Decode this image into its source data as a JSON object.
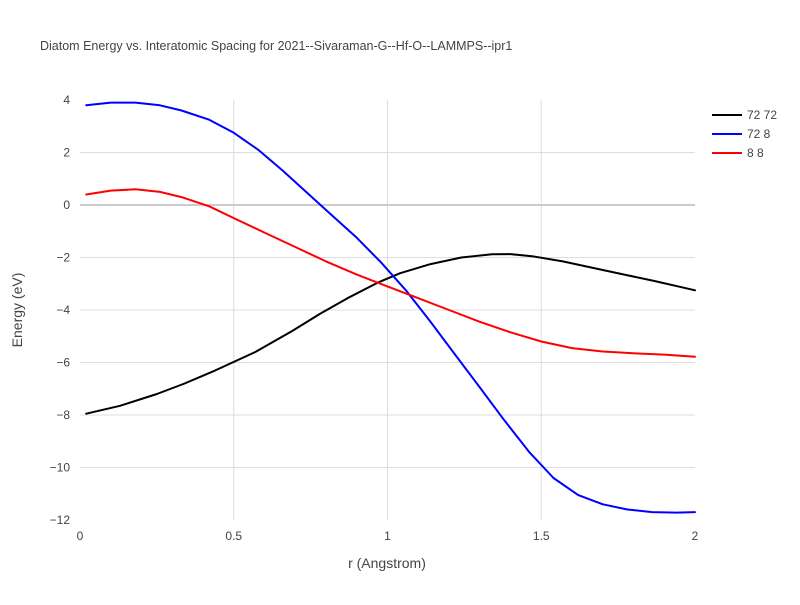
{
  "chart_data": {
    "type": "line",
    "title": "Diatom Energy vs. Interatomic Spacing for 2021--Sivaraman-G--Hf-O--LAMMPS--ipr1",
    "xlabel": "r (Angstrom)",
    "ylabel": "Energy (eV)",
    "xlim": [
      0,
      2
    ],
    "ylim": [
      -12,
      4
    ],
    "x_ticks": [
      0,
      0.5,
      1,
      1.5,
      2
    ],
    "x_tick_labels": [
      "0",
      "0.5",
      "1",
      "1.5",
      "2"
    ],
    "y_ticks": [
      -12,
      -10,
      -8,
      -6,
      -4,
      -2,
      0,
      2,
      4
    ],
    "y_tick_labels": [
      "−12",
      "−10",
      "−8",
      "−6",
      "−4",
      "−2",
      "0",
      "2",
      "4"
    ],
    "grid": true,
    "legend_position": "top-right",
    "series": [
      {
        "name": "72 72",
        "color": "#000000",
        "x": [
          0.02,
          0.13,
          0.25,
          0.34,
          0.44,
          0.57,
          0.69,
          0.78,
          0.87,
          0.97,
          1.04,
          1.14,
          1.24,
          1.34,
          1.4,
          1.47,
          1.57,
          1.67,
          1.77,
          1.87,
          1.97,
          2.0
        ],
        "y": [
          -7.95,
          -7.65,
          -7.2,
          -6.8,
          -6.3,
          -5.6,
          -4.8,
          -4.15,
          -3.55,
          -2.95,
          -2.6,
          -2.25,
          -2.0,
          -1.88,
          -1.87,
          -1.95,
          -2.15,
          -2.4,
          -2.65,
          -2.9,
          -3.17,
          -3.25
        ]
      },
      {
        "name": "72 8",
        "color": "#0000ff",
        "x": [
          0.02,
          0.1,
          0.18,
          0.26,
          0.33,
          0.42,
          0.5,
          0.58,
          0.66,
          0.74,
          0.82,
          0.9,
          0.98,
          1.06,
          1.14,
          1.22,
          1.3,
          1.38,
          1.46,
          1.54,
          1.62,
          1.7,
          1.78,
          1.86,
          1.94,
          2.0
        ],
        "y": [
          3.8,
          3.9,
          3.9,
          3.8,
          3.6,
          3.25,
          2.75,
          2.1,
          1.3,
          0.45,
          -0.4,
          -1.25,
          -2.2,
          -3.25,
          -4.45,
          -5.7,
          -6.95,
          -8.2,
          -9.4,
          -10.4,
          -11.05,
          -11.4,
          -11.6,
          -11.7,
          -11.72,
          -11.7
        ]
      },
      {
        "name": "8 8",
        "color": "#ff0000",
        "x": [
          0.02,
          0.1,
          0.18,
          0.26,
          0.33,
          0.42,
          0.5,
          0.6,
          0.7,
          0.8,
          0.9,
          1.0,
          1.1,
          1.2,
          1.3,
          1.4,
          1.5,
          1.6,
          1.7,
          1.8,
          1.9,
          2.0
        ],
        "y": [
          0.4,
          0.55,
          0.6,
          0.5,
          0.3,
          -0.05,
          -0.5,
          -1.05,
          -1.6,
          -2.15,
          -2.65,
          -3.1,
          -3.55,
          -4.0,
          -4.45,
          -4.85,
          -5.2,
          -5.45,
          -5.58,
          -5.65,
          -5.7,
          -5.78
        ]
      }
    ]
  }
}
